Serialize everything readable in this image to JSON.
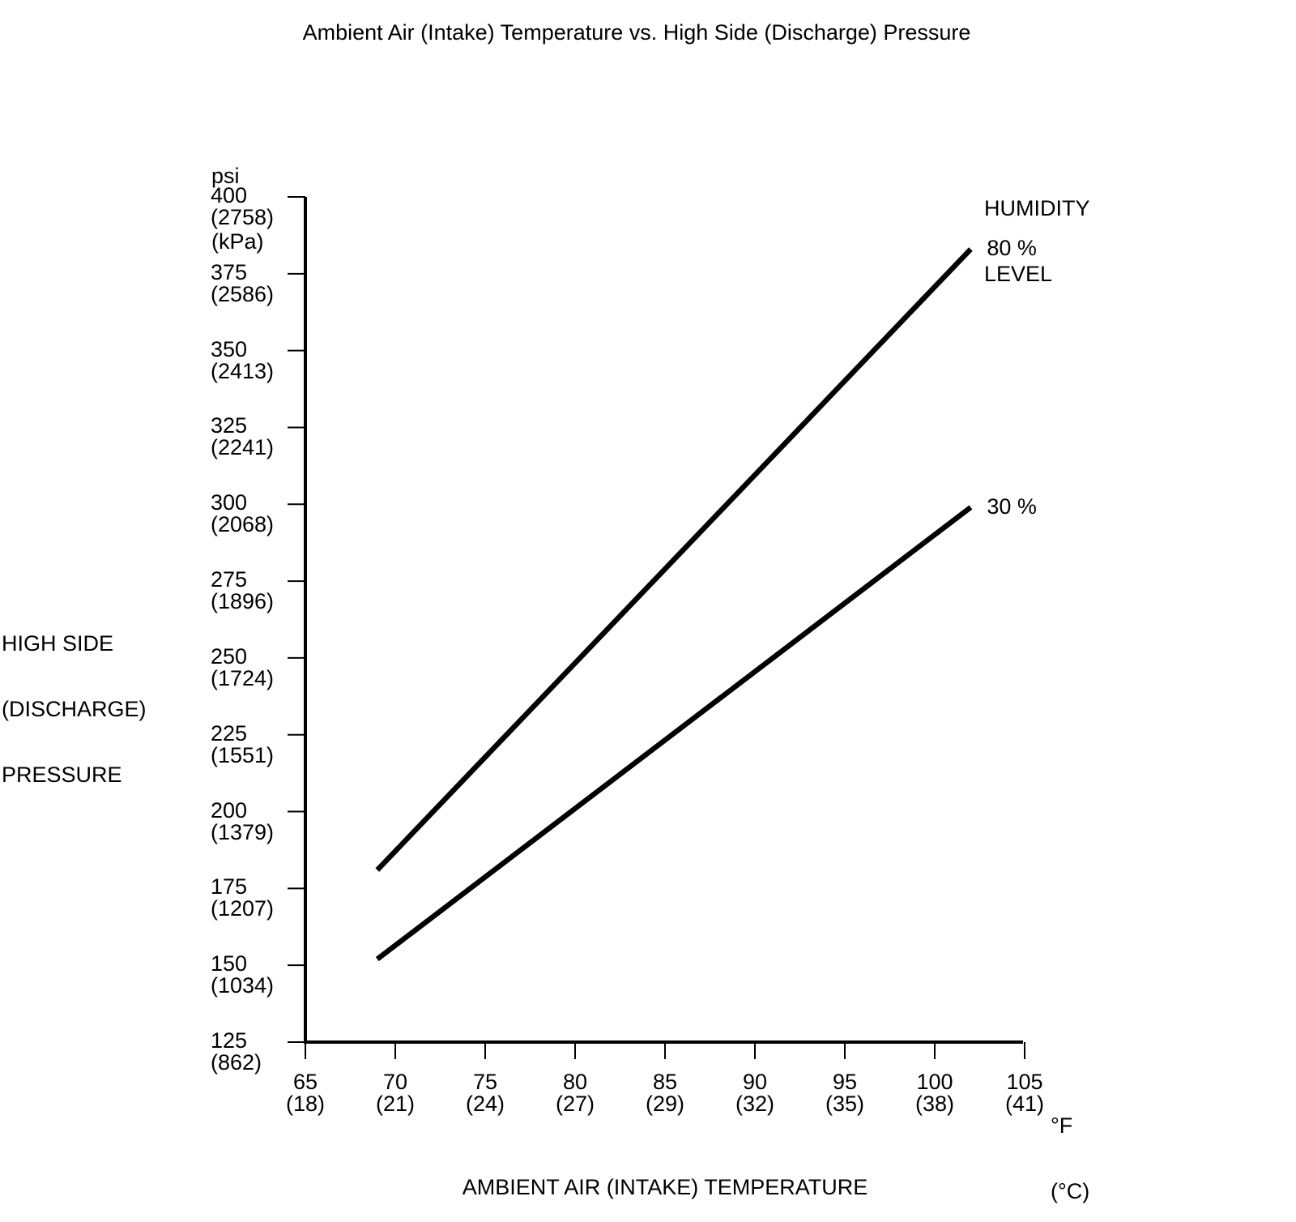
{
  "title": "Ambient Air (Intake) Temperature vs. High Side (Discharge) Pressure",
  "y_axis": {
    "unit_primary": "psi",
    "unit_secondary": "(kPa)",
    "title_lines": [
      "HIGH SIDE",
      "(DISCHARGE)",
      "PRESSURE"
    ]
  },
  "x_axis": {
    "unit_primary": "°F",
    "unit_secondary": "(°C)",
    "title": "AMBIENT AIR (INTAKE) TEMPERATURE"
  },
  "legend": {
    "title_lines": [
      "HUMIDITY",
      "LEVEL"
    ]
  },
  "colors": {
    "ink": "#000000",
    "background": "#ffffff"
  },
  "chart_data": {
    "type": "line",
    "title": "Ambient Air (Intake) Temperature vs. High Side (Discharge) Pressure",
    "xlabel": "AMBIENT AIR (INTAKE) TEMPERATURE",
    "ylabel": "HIGH SIDE (DISCHARGE) PRESSURE",
    "x_unit": "°F (°C)",
    "y_unit": "psi (kPa)",
    "x_range_f": [
      65,
      105
    ],
    "y_range_psi": [
      125,
      400
    ],
    "grid": false,
    "legend_title": "HUMIDITY LEVEL",
    "legend_position": "right of line ends",
    "x_ticks": [
      {
        "f": 65,
        "c": 18
      },
      {
        "f": 70,
        "c": 21
      },
      {
        "f": 75,
        "c": 24
      },
      {
        "f": 80,
        "c": 27
      },
      {
        "f": 85,
        "c": 29
      },
      {
        "f": 90,
        "c": 32
      },
      {
        "f": 95,
        "c": 35
      },
      {
        "f": 100,
        "c": 38
      },
      {
        "f": 105,
        "c": 41
      }
    ],
    "y_ticks": [
      {
        "psi": 400,
        "kpa": 2758
      },
      {
        "psi": 375,
        "kpa": 2586
      },
      {
        "psi": 350,
        "kpa": 2413
      },
      {
        "psi": 325,
        "kpa": 2241
      },
      {
        "psi": 300,
        "kpa": 2068
      },
      {
        "psi": 275,
        "kpa": 1896
      },
      {
        "psi": 250,
        "kpa": 1724
      },
      {
        "psi": 225,
        "kpa": 1551
      },
      {
        "psi": 200,
        "kpa": 1379
      },
      {
        "psi": 175,
        "kpa": 1207
      },
      {
        "psi": 150,
        "kpa": 1034
      },
      {
        "psi": 125,
        "kpa": 862
      }
    ],
    "series": [
      {
        "name": "80 %",
        "points_f_psi": [
          [
            69,
            181
          ],
          [
            102,
            383
          ]
        ]
      },
      {
        "name": "30 %",
        "points_f_psi": [
          [
            69,
            152
          ],
          [
            102,
            299
          ]
        ]
      }
    ]
  }
}
